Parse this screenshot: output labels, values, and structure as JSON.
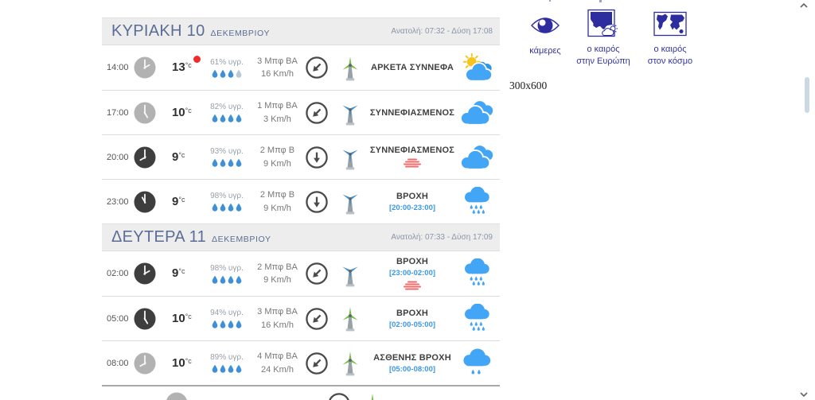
{
  "forecast": {
    "days": [
      {
        "title": "ΚΥΡΙΑΚΗ 10",
        "month": "ΔΕΚΕΜΒΡΙΟΥ",
        "sun_info": "Ανατολή: 07:32 - Δύση 17:08",
        "rows": [
          {
            "time": "14:00",
            "period": "day",
            "temp": "13",
            "temp_unit": "°c",
            "red_dot": true,
            "humidity": "61% υγρ.",
            "drops": [
              1,
              1,
              1,
              0
            ],
            "wind_force": "3 Μπφ ΒΑ",
            "wind_speed": "16 Km/h",
            "wind_arrow": "sw",
            "turbine": "green",
            "condition": "ΑΡΚΕΤΑ ΣΥΝΝΕΦΑ",
            "weather_icon": "sun-cloud"
          },
          {
            "time": "17:00",
            "period": "day",
            "temp": "10",
            "temp_unit": "°c",
            "humidity": "82% υγρ.",
            "drops": [
              1,
              1,
              1,
              1
            ],
            "wind_force": "1 Μπφ ΒΑ",
            "wind_speed": "3 Km/h",
            "wind_arrow": "sw",
            "turbine": "blue",
            "condition": "ΣΥΝΝΕΦΙΑΣΜΕΝΟΣ",
            "weather_icon": "clouds"
          },
          {
            "time": "20:00",
            "period": "night",
            "temp": "9",
            "temp_unit": "°c",
            "humidity": "93% υγρ.",
            "drops": [
              1,
              1,
              1,
              1
            ],
            "wind_force": "2 Μπφ Β",
            "wind_speed": "9 Km/h",
            "wind_arrow": "s",
            "turbine": "blue",
            "condition": "ΣΥΝΝΕΦΙΑΣΜΕΝΟΣ",
            "mist": true,
            "weather_icon": "clouds"
          },
          {
            "time": "23:00",
            "period": "night",
            "temp": "9",
            "temp_unit": "°c",
            "humidity": "98% υγρ.",
            "drops": [
              1,
              1,
              1,
              1
            ],
            "wind_force": "2 Μπφ Β",
            "wind_speed": "9 Km/h",
            "wind_arrow": "s",
            "turbine": "blue",
            "condition": "ΒΡΟΧΗ",
            "time_range": "[20:00-23:00]",
            "weather_icon": "rain"
          }
        ]
      },
      {
        "title": "ΔΕΥΤΕΡΑ 11",
        "month": "ΔΕΚΕΜΒΡΙΟΥ",
        "sun_info": "Ανατολή: 07:33 - Δύση 17:09",
        "rows": [
          {
            "time": "02:00",
            "period": "night",
            "temp": "9",
            "temp_unit": "°c",
            "humidity": "98% υγρ.",
            "drops": [
              1,
              1,
              1,
              1
            ],
            "wind_force": "2 Μπφ ΒΑ",
            "wind_speed": "9 Km/h",
            "wind_arrow": "sw",
            "turbine": "blue",
            "condition": "ΒΡΟΧΗ",
            "time_range": "[23:00-02:00]",
            "mist": true,
            "weather_icon": "rain"
          },
          {
            "time": "05:00",
            "period": "night",
            "temp": "10",
            "temp_unit": "°c",
            "humidity": "94% υγρ.",
            "drops": [
              1,
              1,
              1,
              1
            ],
            "wind_force": "3 Μπφ ΒΑ",
            "wind_speed": "16 Km/h",
            "wind_arrow": "sw",
            "turbine": "green",
            "condition": "ΒΡΟΧΗ",
            "time_range": "[02:00-05:00]",
            "weather_icon": "rain"
          },
          {
            "time": "08:00",
            "period": "day",
            "temp": "10",
            "temp_unit": "°c",
            "humidity": "89% υγρ.",
            "drops": [
              1,
              1,
              1,
              1
            ],
            "wind_force": "4 Μπφ ΒΑ",
            "wind_speed": "24 Km/h",
            "wind_arrow": "sw",
            "turbine": "green",
            "condition": "ΑΣΘΕΝΗΣ ΒΡΟΧΗ",
            "time_range": "[05:00-08:00]",
            "weather_icon": "light-rain"
          }
        ]
      }
    ]
  },
  "sidebar": {
    "items": [
      {
        "id": "cameras",
        "icon": "camera-eye-icon",
        "label_lines": [
          "κάμερες"
        ]
      },
      {
        "id": "europe-weather",
        "icon": "europe-map-icon",
        "label_lines": [
          "ο καιρός",
          "στην Ευρώπη"
        ]
      },
      {
        "id": "world-weather",
        "icon": "world-map-icon",
        "label_lines": [
          "ο καιρός",
          "στον κόσμο"
        ]
      }
    ]
  },
  "ad": {
    "placeholder": "300x600"
  },
  "colors": {
    "cloud_blue": "#42a5f5",
    "sun_yellow": "#f6c41d",
    "turbine_green": "#76c043",
    "turbine_blue": "#4a8fc7",
    "drop_blue": "#4090d8",
    "drop_empty": "#b9c9d6",
    "record_dot_red": "#f12b2b",
    "mist_red": "#f26b6b",
    "time_range_blue": "#3b97e8",
    "day_header_text": "#5b6d94",
    "sidebar_navy": "#2d2da0"
  }
}
